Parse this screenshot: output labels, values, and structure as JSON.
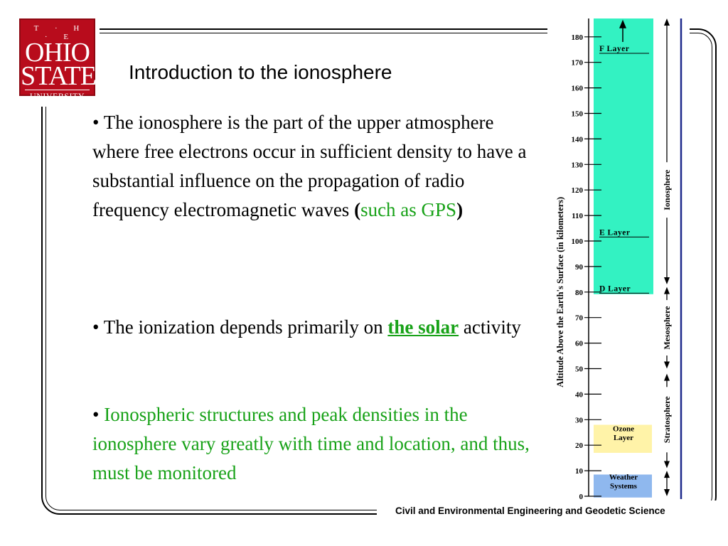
{
  "logo": {
    "line1": "T · H · E",
    "line2": "OHIO",
    "line3": "STATE",
    "line4": "UNIVERSITY"
  },
  "title": "Introduction to the ionosphere",
  "bullet1": {
    "text_before": "• The ionosphere is the part of the upper atmosphere where free electrons occur in sufficient density to have a substantial influence on the propagation of radio frequency electromagnetic waves ",
    "paren_open": "(",
    "green": "such as GPS",
    "paren_close": ")"
  },
  "bullet2": {
    "before": "• The ionization depends primarily on ",
    "link": "the solar",
    "after": " activity"
  },
  "bullet3": {
    "bullet": "• ",
    "text": "Ionospheric structures and peak densities in the ionosphere vary greatly with time and location, and thus, must be monitored"
  },
  "footer": "Civil and Environmental Engineering and Geodetic Science",
  "diagram": {
    "axis_label": "Altitude Above the Earth's Surface (in kilometers)",
    "ticks": [
      "0",
      "10",
      "20",
      "30",
      "40",
      "50",
      "60",
      "70",
      "80",
      "90",
      "100",
      "110",
      "120",
      "130",
      "140",
      "150",
      "160",
      "170",
      "180"
    ],
    "layers": [
      "F Layer",
      "E Layer",
      "D Layer"
    ],
    "ozone": [
      "Ozone",
      "Layer"
    ],
    "weather": [
      "Weather",
      "Systems"
    ],
    "regions": [
      "Ionosphere",
      "Mesosphere",
      "Stratosphere"
    ],
    "colors": {
      "ionosphere_fill": "#33f2c2",
      "ozone_fill": "#fff3a8",
      "weather_fill": "#8fb8ee",
      "rule": "#1e2a8c"
    }
  }
}
